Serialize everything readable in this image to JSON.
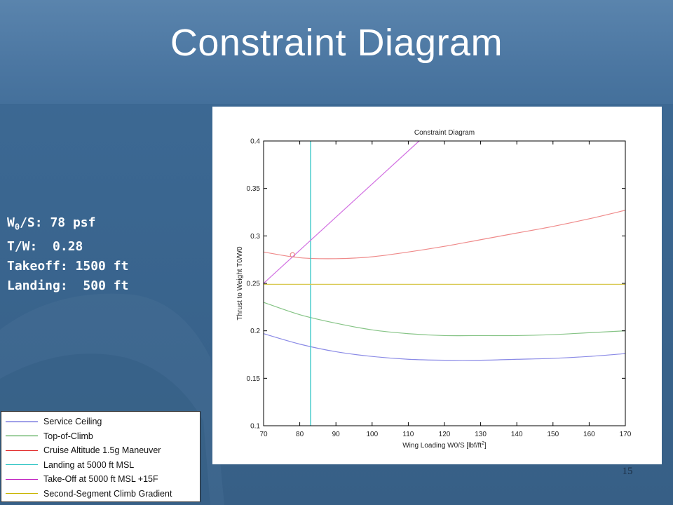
{
  "slide": {
    "title": "Constraint Diagram",
    "page_number": "15"
  },
  "stats": {
    "wing_loading_label": "W",
    "wing_loading_sub": "0",
    "wing_loading_rest": "/S:",
    "wing_loading_value": "78 psf",
    "tw_label": "T/W:",
    "tw_value": "0.28",
    "takeoff_label": "Takeoff:",
    "takeoff_value": "1500 ft",
    "landing_label": "Landing:",
    "landing_value": "500 ft"
  },
  "legend": {
    "items": [
      {
        "label": "Service Ceiling",
        "color": "#2b2bcc"
      },
      {
        "label": "Top-of-Climb",
        "color": "#1a8c1a"
      },
      {
        "label": "Cruise Altitude 1.5g Maneuver",
        "color": "#e02020"
      },
      {
        "label": "Landing at 5000 ft MSL",
        "color": "#20c0c0"
      },
      {
        "label": "Take-Off at 5000 ft MSL +15F",
        "color": "#c020c0"
      },
      {
        "label": "Second-Segment Climb Gradient",
        "color": "#c8b400"
      }
    ]
  },
  "chart_data": {
    "type": "line",
    "title": "Constraint Diagram",
    "xlabel": "Wing Loading W0/S [lbf/ft",
    "xlabel_sup": "2",
    "xlabel_end": "]",
    "ylabel": "Thrust to Weight T0/W0",
    "xlim": [
      70,
      170
    ],
    "ylim": [
      0.1,
      0.4
    ],
    "x_ticks": [
      "70",
      "80",
      "90",
      "100",
      "110",
      "120",
      "130",
      "140",
      "150",
      "160",
      "170"
    ],
    "y_ticks": [
      "0.1",
      "0.15",
      "0.2",
      "0.25",
      "0.3",
      "0.35",
      "0.4"
    ],
    "series": [
      {
        "name": "Service Ceiling",
        "color": "#8a8ae6",
        "x": [
          70,
          80,
          90,
          100,
          110,
          120,
          130,
          140,
          150,
          160,
          170
        ],
        "y": [
          0.197,
          0.186,
          0.178,
          0.173,
          0.17,
          0.169,
          0.169,
          0.17,
          0.171,
          0.173,
          0.176
        ]
      },
      {
        "name": "Top-of-Climb",
        "color": "#86c486",
        "x": [
          70,
          80,
          90,
          100,
          110,
          120,
          130,
          140,
          150,
          160,
          170
        ],
        "y": [
          0.23,
          0.217,
          0.208,
          0.201,
          0.197,
          0.195,
          0.195,
          0.195,
          0.196,
          0.198,
          0.2
        ]
      },
      {
        "name": "Cruise Altitude 1.5g Maneuver",
        "color": "#ef8a8a",
        "x": [
          70,
          80,
          90,
          100,
          110,
          120,
          130,
          140,
          150,
          160,
          170
        ],
        "y": [
          0.283,
          0.277,
          0.276,
          0.278,
          0.283,
          0.289,
          0.296,
          0.303,
          0.31,
          0.318,
          0.327
        ]
      },
      {
        "name": "Landing at 5000 ft MSL",
        "color": "#3cc8c8",
        "vertical_x": 83
      },
      {
        "name": "Take-Off at 5000 ft MSL +15F",
        "color": "#d270e2",
        "x": [
          70,
          113
        ],
        "y": [
          0.25,
          0.4
        ]
      },
      {
        "name": "Second-Segment Climb Gradient",
        "color": "#d8c850",
        "x": [
          70,
          170
        ],
        "y": [
          0.249,
          0.249
        ]
      }
    ],
    "design_point": {
      "x": 78,
      "y": 0.28,
      "color": "#e88080"
    },
    "grid": false
  }
}
